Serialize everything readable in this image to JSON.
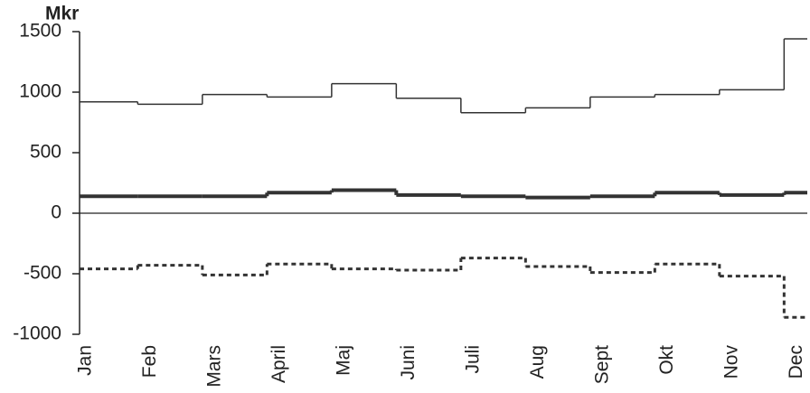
{
  "chart_data": {
    "type": "step",
    "y_label": "Mkr",
    "categories": [
      "Jan",
      "Feb",
      "Mars",
      "April",
      "Maj",
      "Juni",
      "Juli",
      "Aug",
      "Sept",
      "Okt",
      "Nov",
      "Dec"
    ],
    "ylim": [
      -1000,
      1500
    ],
    "yticks": [
      1500,
      1000,
      500,
      0,
      -500,
      -1000
    ],
    "series": [
      {
        "color": "#333333",
        "line_width": 1.5,
        "line_style": "solid",
        "values": [
          920,
          900,
          980,
          960,
          1070,
          950,
          830,
          870,
          960,
          980,
          1020,
          1440
        ]
      },
      {
        "color": "#333333",
        "line_width": 4,
        "line_style": "solid",
        "values": [
          140,
          140,
          140,
          170,
          190,
          150,
          140,
          130,
          140,
          170,
          150,
          170
        ]
      },
      {
        "color": "#333333",
        "line_width": 3,
        "line_style": "dotted",
        "values": [
          -460,
          -430,
          -510,
          -420,
          -460,
          -470,
          -370,
          -440,
          -490,
          -420,
          -520,
          -860
        ]
      }
    ]
  }
}
